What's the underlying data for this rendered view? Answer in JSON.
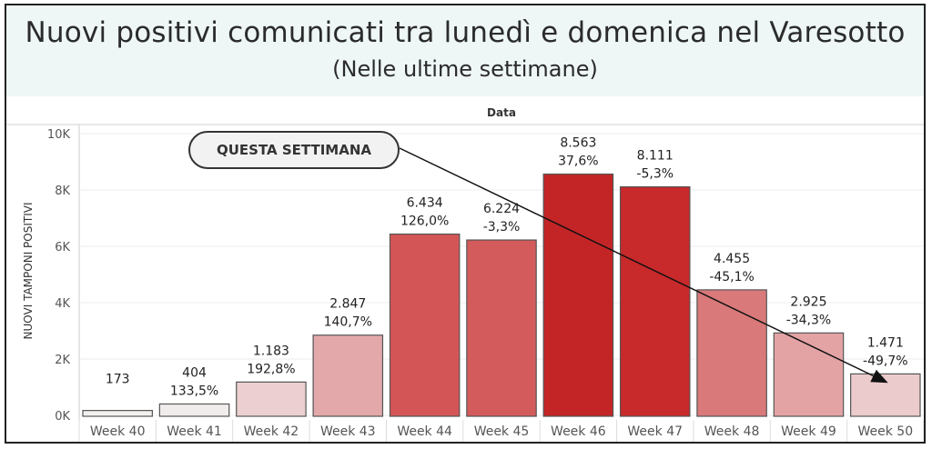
{
  "header": {
    "title": "Nuovi positivi comunicati tra lunedì e domenica nel Varesotto",
    "subtitle": "(Nelle ultime settimane)"
  },
  "annotation": {
    "callout_text": "QUESTA SETTIMANA"
  },
  "colors": {
    "header_bg": "#eef7f6",
    "bar_stroke": "#555555",
    "arrow": "#111111"
  },
  "chart_data": {
    "type": "bar",
    "column_header": "Data",
    "ylabel": "NUOVI TAMPONI POSITIVI",
    "ylim": [
      0,
      10000
    ],
    "yticks": [
      0,
      2000,
      4000,
      6000,
      8000,
      10000
    ],
    "ytick_labels": [
      "0K",
      "2K",
      "4K",
      "6K",
      "8K",
      "10K"
    ],
    "grid": true,
    "categories": [
      "Week 40",
      "Week 41",
      "Week 42",
      "Week 43",
      "Week 44",
      "Week 45",
      "Week 46",
      "Week 47",
      "Week 48",
      "Week 49",
      "Week 50"
    ],
    "values": [
      173,
      404,
      1183,
      2847,
      6434,
      6224,
      8563,
      8111,
      4455,
      2925,
      1471
    ],
    "value_labels": [
      "173",
      "404",
      "1.183",
      "2.847",
      "6.434",
      "6.224",
      "8.563",
      "8.111",
      "4.455",
      "2.925",
      "1.471"
    ],
    "change_labels": [
      "",
      "133,5%",
      "192,8%",
      "140,7%",
      "126,0%",
      "-3,3%",
      "37,6%",
      "-5,3%",
      "-45,1%",
      "-34,3%",
      "-49,7%"
    ],
    "bar_colors": [
      "#f3f0f0",
      "#f1ecec",
      "#ecd0d1",
      "#e3a9aa",
      "#d45556",
      "#d45b5b",
      "#c32526",
      "#c8292a",
      "#d9797a",
      "#e3a3a5",
      "#eccbcd"
    ]
  }
}
